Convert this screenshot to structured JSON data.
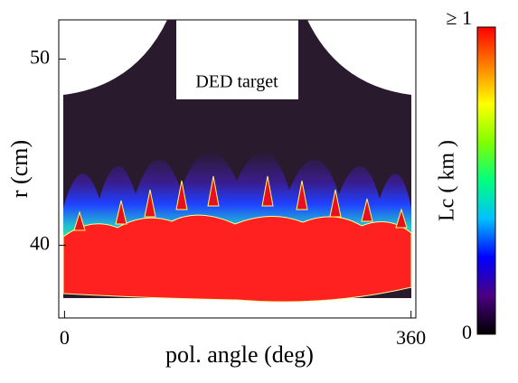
{
  "chart_data": {
    "type": "heatmap",
    "annotation": "DED target",
    "xlabel": "pol. angle (deg)",
    "ylabel": "r (cm)",
    "xlim": [
      -6,
      365
    ],
    "xticks": [
      0,
      360
    ],
    "ylim": [
      36.1,
      52.1
    ],
    "yticks": [
      40,
      50
    ],
    "colorbar": {
      "label": "Lc ( km )",
      "lim": [
        0,
        1
      ],
      "ticks": [
        0,
        {
          "value": 1,
          "label": "≥ 1"
        }
      ],
      "colorscale": [
        "#000000",
        "#4b0082",
        "#0000ff",
        "#00c0ff",
        "#00ff80",
        "#80ff00",
        "#ffff00",
        "#ff8000",
        "#ff0000"
      ]
    }
  }
}
